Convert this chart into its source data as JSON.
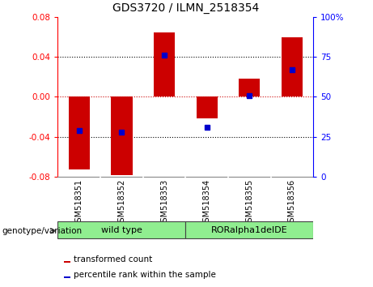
{
  "title": "GDS3720 / ILMN_2518354",
  "categories": [
    "GSM518351",
    "GSM518352",
    "GSM518353",
    "GSM518354",
    "GSM518355",
    "GSM518356"
  ],
  "red_bars": [
    -0.073,
    -0.079,
    0.065,
    -0.022,
    0.018,
    0.06
  ],
  "blue_dots_pct": [
    29,
    28,
    76,
    31,
    51,
    67
  ],
  "ylim_left": [
    -0.08,
    0.08
  ],
  "ylim_right": [
    0,
    100
  ],
  "yticks_left": [
    -0.08,
    -0.04,
    0,
    0.04,
    0.08
  ],
  "yticks_right": [
    0,
    25,
    50,
    75,
    100
  ],
  "legend_red": "transformed count",
  "legend_blue": "percentile rank within the sample",
  "bar_color": "#CC0000",
  "dot_color": "#0000CC",
  "zero_line_color": "#CC0000",
  "grid_color": "#000000",
  "bg_color": "#FFFFFF",
  "plot_bg": "#FFFFFF",
  "tick_area_bg": "#C8C8C8",
  "group_color": "#90EE90",
  "wild_type_label": "wild type",
  "ror_label": "RORalpha1delDE",
  "genotype_label": "genotype/variation"
}
